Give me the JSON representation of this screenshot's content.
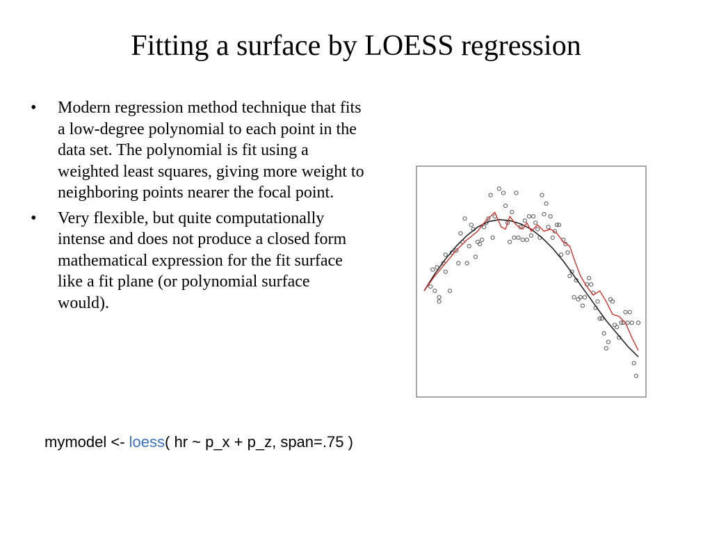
{
  "slide": {
    "title": "Fitting a surface by LOESS regression",
    "bullets": [
      "Modern regression method technique that fits a low-degree polynomial to each point in the data set.  The polynomial is fit using a weighted least squares, giving more weight to neighboring points nearer the focal point.",
      "Very flexible, but quite computationally intense and does not produce a closed form mathematical expression for the fit surface like a fit plane (or polynomial surface would)."
    ],
    "bullet_glyph": "•",
    "code": {
      "prefix": "mymodel <- ",
      "function": "loess",
      "suffix": "( hr ~ p_x + p_z, span=.75 )"
    }
  },
  "colors": {
    "function_name": "#3a72c4",
    "points": "#555555",
    "smooth_curve": "#222222",
    "wiggly_curve": "#d9302c",
    "frame": "#888888"
  },
  "chart_data": {
    "type": "scatter",
    "title": "",
    "xlabel": "",
    "ylabel": "",
    "xlim": [
      0,
      100
    ],
    "ylim": [
      0,
      100
    ],
    "grid": false,
    "axes_labels_shown": false,
    "points": [
      [
        3,
        47
      ],
      [
        4,
        55
      ],
      [
        5,
        45
      ],
      [
        6,
        56
      ],
      [
        7,
        40
      ],
      [
        7,
        42
      ],
      [
        9,
        58
      ],
      [
        10,
        54
      ],
      [
        10,
        62
      ],
      [
        12,
        45
      ],
      [
        13,
        63
      ],
      [
        15,
        64
      ],
      [
        16,
        58
      ],
      [
        17,
        72
      ],
      [
        18,
        68
      ],
      [
        19,
        79
      ],
      [
        20,
        58
      ],
      [
        21,
        66
      ],
      [
        22,
        76
      ],
      [
        23,
        74
      ],
      [
        24,
        61
      ],
      [
        25,
        68
      ],
      [
        26,
        67
      ],
      [
        27,
        69
      ],
      [
        28,
        75
      ],
      [
        29,
        77
      ],
      [
        30,
        79
      ],
      [
        31,
        90
      ],
      [
        32,
        70
      ],
      [
        33,
        80
      ],
      [
        35,
        93
      ],
      [
        37,
        91
      ],
      [
        38,
        85
      ],
      [
        39,
        77
      ],
      [
        40,
        68
      ],
      [
        41,
        82
      ],
      [
        42,
        70
      ],
      [
        43,
        91
      ],
      [
        44,
        70
      ],
      [
        45,
        75
      ],
      [
        46,
        69
      ],
      [
        47,
        78
      ],
      [
        48,
        69
      ],
      [
        49,
        80
      ],
      [
        50,
        71
      ],
      [
        51,
        80
      ],
      [
        52,
        77
      ],
      [
        53,
        74
      ],
      [
        54,
        70
      ],
      [
        55,
        90
      ],
      [
        56,
        81
      ],
      [
        57,
        86
      ],
      [
        58,
        75
      ],
      [
        59,
        80
      ],
      [
        60,
        70
      ],
      [
        61,
        73
      ],
      [
        62,
        76
      ],
      [
        63,
        76
      ],
      [
        64,
        62
      ],
      [
        65,
        69
      ],
      [
        66,
        67
      ],
      [
        67,
        63
      ],
      [
        68,
        52
      ],
      [
        69,
        54
      ],
      [
        70,
        42
      ],
      [
        71,
        50
      ],
      [
        72,
        41
      ],
      [
        73,
        42
      ],
      [
        74,
        38
      ],
      [
        75,
        42
      ],
      [
        76,
        48
      ],
      [
        77,
        51
      ],
      [
        78,
        48
      ],
      [
        79,
        44
      ],
      [
        80,
        37
      ],
      [
        81,
        40
      ],
      [
        82,
        32
      ],
      [
        83,
        32
      ],
      [
        84,
        25
      ],
      [
        85,
        18
      ],
      [
        86,
        21
      ],
      [
        87,
        41
      ],
      [
        88,
        40
      ],
      [
        89,
        29
      ],
      [
        90,
        28
      ],
      [
        91,
        23
      ],
      [
        92,
        30
      ],
      [
        93,
        30
      ],
      [
        94,
        35
      ],
      [
        95,
        30
      ],
      [
        96,
        35
      ],
      [
        97,
        30
      ],
      [
        98,
        11
      ],
      [
        99,
        5
      ],
      [
        100,
        30
      ]
    ],
    "series": [
      {
        "style": "smooth",
        "x": [
          0,
          5,
          10,
          15,
          20,
          25,
          30,
          35,
          40,
          45,
          50,
          55,
          60,
          65,
          70,
          75,
          80,
          85,
          90,
          95,
          100
        ],
        "y": [
          45,
          53,
          60,
          66,
          71,
          75,
          77.5,
          78.5,
          78,
          76.5,
          74,
          70,
          65,
          59,
          52,
          45,
          38,
          31,
          25,
          19,
          14
        ]
      },
      {
        "style": "wiggly",
        "x": [
          0,
          5,
          10,
          15,
          20,
          25,
          28,
          30,
          33,
          36,
          38,
          40,
          43,
          46,
          48,
          50,
          53,
          56,
          59,
          62,
          65,
          68,
          70,
          73,
          76,
          79,
          82,
          85,
          88,
          91,
          94,
          97,
          100
        ],
        "y": [
          45,
          52,
          58,
          64,
          69,
          73,
          77,
          79,
          82,
          75,
          74,
          80,
          76,
          74,
          77,
          73,
          76,
          73,
          74,
          72,
          68,
          66,
          60,
          52,
          47,
          43,
          45,
          40,
          34,
          33,
          30,
          23,
          17
        ]
      }
    ]
  }
}
